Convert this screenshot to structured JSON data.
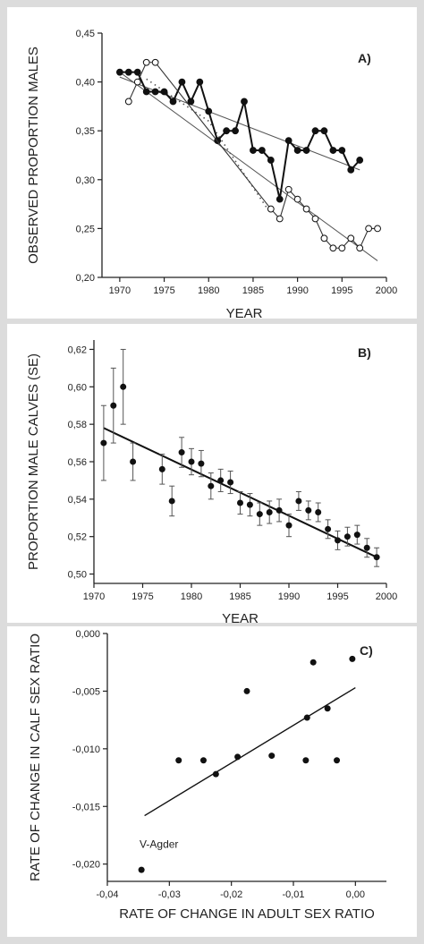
{
  "chart_data": [
    {
      "type": "line",
      "panel_label": "A)",
      "xlabel": "YEAR",
      "ylabel": "OBSERVED PROPORTION MALES",
      "xlim": [
        1968,
        2000
      ],
      "ylim": [
        0.2,
        0.45
      ],
      "xticks": [
        1970,
        1975,
        1980,
        1985,
        1990,
        1995,
        2000
      ],
      "xtick_labels": [
        "1970",
        "1975",
        "1980",
        "1985",
        "1990",
        "1995",
        "2000"
      ],
      "yticks": [
        0.2,
        0.25,
        0.3,
        0.35,
        0.4,
        0.45
      ],
      "ytick_labels": [
        "0,20",
        "0,25",
        "0,30",
        "0,35",
        "0,40",
        "0,45"
      ],
      "grid": false,
      "series": [
        {
          "marker": "filled-circle",
          "x": [
            1970,
            1971,
            1972,
            1973,
            1974,
            1975,
            1976,
            1977,
            1978,
            1979,
            1980,
            1981,
            1982,
            1983,
            1984,
            1985,
            1986,
            1987,
            1988,
            1989,
            1990,
            1991,
            1992,
            1993,
            1994,
            1995,
            1996,
            1997
          ],
          "y": [
            0.41,
            0.41,
            0.41,
            0.39,
            0.39,
            0.39,
            0.38,
            0.4,
            0.38,
            0.4,
            0.37,
            0.34,
            0.35,
            0.35,
            0.38,
            0.33,
            0.33,
            0.32,
            0.28,
            0.34,
            0.33,
            0.33,
            0.35,
            0.35,
            0.33,
            0.33,
            0.31,
            0.32
          ]
        },
        {
          "marker": "open-circle",
          "x": [
            1971,
            1972,
            1973,
            1974,
            1987,
            1988,
            1989,
            1990,
            1991,
            1992,
            1993,
            1994,
            1995,
            1996,
            1997,
            1998,
            1999
          ],
          "y": [
            0.38,
            0.4,
            0.42,
            0.42,
            0.27,
            0.26,
            0.29,
            0.28,
            0.27,
            0.26,
            0.24,
            0.23,
            0.23,
            0.24,
            0.23,
            0.25,
            0.25
          ]
        }
      ],
      "trend_lines": [
        {
          "style": "solid-thin",
          "x": [
            1970,
            1997
          ],
          "y": [
            0.405,
            0.31
          ]
        },
        {
          "style": "solid-thin",
          "x": [
            1970,
            1999
          ],
          "y": [
            0.41,
            0.217
          ]
        },
        {
          "style": "dotted",
          "x": [
            1973,
            1980,
            1987
          ],
          "y": [
            0.403,
            0.36,
            0.265
          ]
        }
      ]
    },
    {
      "type": "scatter",
      "panel_label": "B)",
      "xlabel": "YEAR",
      "ylabel": "PROPORTION MALE CALVES (SE)",
      "xlim": [
        1970,
        2000
      ],
      "ylim": [
        0.495,
        0.625
      ],
      "xticks": [
        1970,
        1975,
        1980,
        1985,
        1990,
        1995,
        2000
      ],
      "xtick_labels": [
        "1970",
        "1975",
        "1980",
        "1985",
        "1990",
        "1995",
        "2000"
      ],
      "yticks": [
        0.5,
        0.52,
        0.54,
        0.56,
        0.58,
        0.6,
        0.62
      ],
      "ytick_labels": [
        "0,50",
        "0,52",
        "0,54",
        "0,56",
        "0,58",
        "0,60",
        "0,62"
      ],
      "grid": false,
      "points": {
        "x": [
          1971,
          1972,
          1973,
          1974,
          1977,
          1978,
          1979,
          1980,
          1981,
          1982,
          1983,
          1984,
          1985,
          1986,
          1987,
          1988,
          1989,
          1990,
          1991,
          1992,
          1993,
          1994,
          1995,
          1996,
          1997,
          1998,
          1999
        ],
        "y": [
          0.57,
          0.59,
          0.6,
          0.56,
          0.556,
          0.539,
          0.565,
          0.56,
          0.559,
          0.547,
          0.55,
          0.549,
          0.538,
          0.537,
          0.532,
          0.533,
          0.534,
          0.526,
          0.539,
          0.534,
          0.533,
          0.524,
          0.518,
          0.52,
          0.521,
          0.514,
          0.509
        ],
        "se": [
          0.02,
          0.02,
          0.02,
          0.01,
          0.008,
          0.008,
          0.008,
          0.007,
          0.007,
          0.007,
          0.006,
          0.006,
          0.006,
          0.006,
          0.006,
          0.006,
          0.006,
          0.006,
          0.005,
          0.005,
          0.005,
          0.005,
          0.005,
          0.005,
          0.005,
          0.005,
          0.005
        ]
      },
      "trend_line": {
        "x": [
          1971,
          1999
        ],
        "y": [
          0.578,
          0.509
        ]
      }
    },
    {
      "type": "scatter",
      "panel_label": "C)",
      "xlabel": "RATE OF CHANGE IN ADULT SEX RATIO",
      "ylabel": "RATE OF CHANGE IN CALF SEX RATIO",
      "xlim": [
        -0.04,
        0.005
      ],
      "ylim": [
        -0.0215,
        0.0
      ],
      "xticks": [
        -0.04,
        -0.03,
        -0.02,
        -0.01,
        0.0
      ],
      "xtick_labels": [
        "-0,04",
        "-0,03",
        "-0,02",
        "-0,01",
        "0,00"
      ],
      "yticks": [
        -0.02,
        -0.015,
        -0.01,
        -0.005,
        0.0
      ],
      "ytick_labels": [
        "-0,020",
        "-0,015",
        "-0,010",
        "-0,005",
        "0,000"
      ],
      "grid": false,
      "points": {
        "x": [
          -0.0345,
          -0.0285,
          -0.0245,
          -0.0225,
          -0.019,
          -0.0175,
          -0.0135,
          -0.008,
          -0.0078,
          -0.0068,
          -0.0045,
          -0.003,
          -0.0005
        ],
        "y": [
          -0.0205,
          -0.011,
          -0.011,
          -0.0122,
          -0.0107,
          -0.005,
          -0.0106,
          -0.011,
          -0.0073,
          -0.0025,
          -0.0065,
          -0.011,
          -0.0022
        ]
      },
      "trend_line": {
        "x": [
          -0.034,
          0.0
        ],
        "y": [
          -0.0158,
          -0.0047
        ]
      },
      "annotations": [
        {
          "text": "V-Agder",
          "x": -0.0348,
          "y": -0.0186
        }
      ]
    }
  ]
}
